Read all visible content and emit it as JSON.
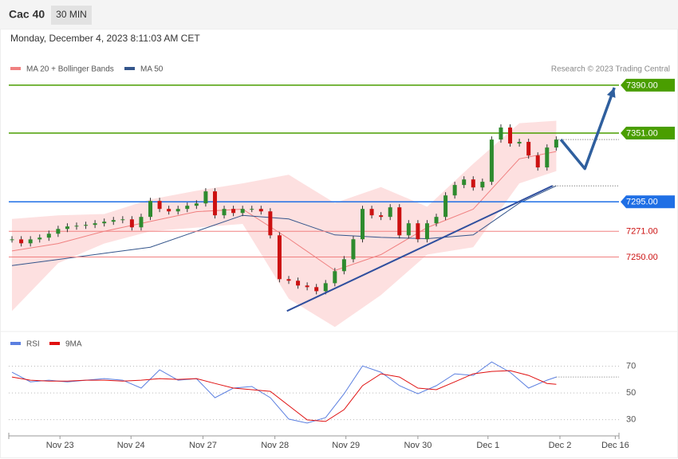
{
  "header": {
    "symbol": "Cac 40",
    "interval": "30 MIN",
    "timestamp": "Monday, December 4, 2023 8:11:03 AM CET"
  },
  "chart_data": [
    {
      "type": "candlestick",
      "credit": "Research © 2023 Trading Central",
      "xlim": [
        -0.35,
        65.8
      ],
      "ylim": [
        7190,
        7436
      ],
      "up_color": "#2e8b2e",
      "down_color": "#cc1111",
      "candles": {
        "x": [
          0,
          1,
          2,
          3,
          4,
          5,
          6,
          7,
          8,
          9,
          10,
          11,
          12,
          13,
          14,
          15,
          16,
          17,
          18,
          19,
          20,
          21,
          22,
          23,
          24,
          25,
          26,
          27,
          28,
          29,
          30,
          31,
          32,
          33,
          34,
          35,
          36,
          37,
          38,
          39,
          40,
          41,
          42,
          43,
          44,
          45,
          46,
          47,
          48,
          49,
          50,
          51,
          52,
          53,
          54,
          55,
          56,
          57,
          58,
          59
        ],
        "values": [
          7264.4,
          7261.2,
          7264.4,
          7265.8,
          7269,
          7272.9,
          7274.9,
          7275.5,
          7276.2,
          7277.5,
          7278.8,
          7280.1,
          7280.7,
          7274.2,
          7282.7,
          7295.7,
          7289.2,
          7287.2,
          7289.2,
          7291.8,
          7293.7,
          7303.5,
          7284,
          7289.2,
          7285.9,
          7289.2,
          7289.2,
          7287.2,
          7267.7,
          7232,
          7230.7,
          7226.8,
          7225.5,
          7222.2,
          7228.7,
          7238.5,
          7248.2,
          7264.5,
          7289.2,
          7284,
          7282.7,
          7290.5,
          7267.7,
          7277.5,
          7264.5,
          7277.5,
          7282.7,
          7300.2,
          7308.7,
          7313.2,
          7306.7,
          7311.3,
          7345.7,
          7355.5,
          7342.5,
          7343.8,
          7332.7,
          7323,
          7339.2,
          7345.7
        ]
      },
      "series": [
        {
          "name": "MA 20 + Bollinger Bands",
          "color": "#f08080",
          "band_color": "#fde0e0",
          "x": [
            0,
            5,
            10,
            15,
            20,
            25,
            30,
            35,
            40,
            45,
            50,
            55,
            59
          ],
          "values": [
            7255,
            7261,
            7271,
            7279,
            7287,
            7289,
            7265,
            7239,
            7252,
            7274,
            7289,
            7330,
            7336
          ],
          "upper": [
            7281,
            7284,
            7285,
            7297,
            7304,
            7310,
            7317,
            7294,
            7307,
            7291,
            7326,
            7359,
            7361
          ],
          "lower": [
            7206,
            7245,
            7261,
            7271,
            7274,
            7277,
            7216,
            7193,
            7219,
            7252,
            7258,
            7310,
            7320
          ]
        },
        {
          "name": "MA 50",
          "color": "#34558b",
          "x": [
            0,
            5,
            10,
            15,
            20,
            25,
            30,
            35,
            40,
            45,
            50,
            55,
            59
          ],
          "values": [
            7243,
            7248,
            7253,
            7258,
            7271,
            7284,
            7281,
            7268,
            7266,
            7265,
            7268,
            7294,
            7308
          ]
        }
      ],
      "levels": [
        {
          "value": 7390,
          "label": "7390.00",
          "color": "#4a9e00",
          "box": true
        },
        {
          "value": 7351,
          "label": "7351.00",
          "color": "#4a9e00",
          "box": true
        },
        {
          "value": 7295,
          "label": "7295.00",
          "color": "#1f6fe5",
          "box": true
        },
        {
          "value": 7271,
          "label": "7271.00",
          "color": "#cc1111",
          "box": false
        },
        {
          "value": 7250,
          "label": "7250.00",
          "color": "#cc1111",
          "box": false
        }
      ],
      "trendline": {
        "color": "#2f4f9e",
        "x": [
          29.8,
          58.6
        ],
        "values": [
          7206,
          7308
        ]
      },
      "forecast": {
        "color": "#2f5f9e",
        "x": [
          59.5,
          62.1,
          65.3
        ],
        "values": [
          7345.7,
          7322,
          7388
        ]
      }
    },
    {
      "type": "line",
      "xlim": [
        -0.35,
        65.8
      ],
      "ylim": [
        19,
        96
      ],
      "yticks": [
        30,
        50,
        70
      ],
      "xticks": [
        {
          "value": 5.2,
          "label": "Nov 23"
        },
        {
          "value": 12.9,
          "label": "Nov 24"
        },
        {
          "value": 20.7,
          "label": "Nov 27"
        },
        {
          "value": 28.5,
          "label": "Nov 28"
        },
        {
          "value": 36.2,
          "label": "Nov 29"
        },
        {
          "value": 44.0,
          "label": "Nov 30"
        },
        {
          "value": 51.6,
          "label": "Dec 1"
        },
        {
          "value": 59.4,
          "label": "Dec 2"
        },
        {
          "value": 65.4,
          "label": "Dec 16"
        }
      ],
      "series": [
        {
          "name": "RSI",
          "color": "#5b7fe0",
          "x": [
            0,
            2,
            4,
            6,
            8,
            10,
            12,
            14,
            16,
            18,
            20,
            22,
            24,
            26,
            28,
            30,
            32,
            34,
            36,
            38,
            40,
            42,
            44,
            46,
            48,
            50,
            52,
            54,
            56,
            58,
            59
          ],
          "values": [
            65.5,
            58.3,
            59.5,
            58.3,
            59.5,
            60.7,
            59.5,
            53.6,
            67.3,
            59.5,
            60.7,
            46.4,
            53.6,
            54.8,
            46.4,
            30.4,
            27.4,
            31.5,
            49.4,
            70.2,
            65.5,
            55.4,
            49.4,
            55.4,
            64.3,
            63.1,
            73.2,
            65.5,
            53.6,
            59.5,
            61.9
          ]
        },
        {
          "name": "9MA",
          "color": "#e01010",
          "x": [
            0,
            2,
            4,
            6,
            8,
            10,
            12,
            14,
            16,
            18,
            20,
            22,
            24,
            26,
            28,
            30,
            32,
            34,
            36,
            38,
            40,
            42,
            44,
            46,
            48,
            50,
            52,
            54,
            56,
            58,
            59
          ],
          "values": [
            61.9,
            59.5,
            58.9,
            58.9,
            59.5,
            59.5,
            58.9,
            59.5,
            60.7,
            60.1,
            60.7,
            57.1,
            53.6,
            52.4,
            51.2,
            40.5,
            29.8,
            28.6,
            37.5,
            55.4,
            64.3,
            61.9,
            53.6,
            52.4,
            58.3,
            64.3,
            66.1,
            66.7,
            63.1,
            57.1,
            56.5
          ]
        }
      ]
    }
  ]
}
